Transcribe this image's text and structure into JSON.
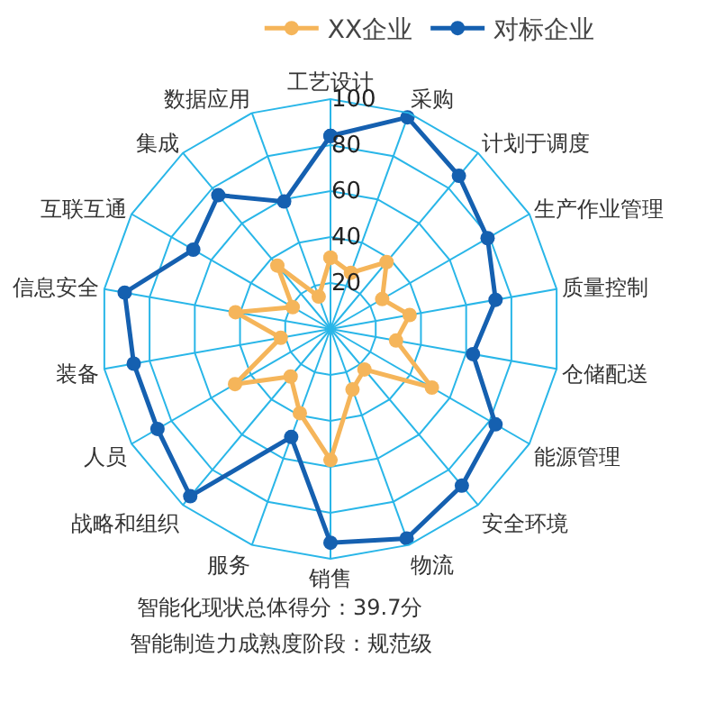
{
  "chart_data": {
    "type": "radar",
    "categories": [
      "工艺设计",
      "采购",
      "计划于调度",
      "生产作业管理",
      "质量控制",
      "仓储配送",
      "能源管理",
      "安全环境",
      "物流",
      "销售",
      "服务",
      "战略和组织",
      "人员",
      "装备",
      "信息安全",
      "互联互通",
      "集成",
      "数据应用"
    ],
    "series": [
      {
        "name": "XX企业",
        "color": "#f5b55a",
        "values": [
          31,
          26,
          38,
          26,
          35,
          29,
          51,
          23,
          28,
          57,
          39,
          27,
          48,
          22,
          42,
          19,
          36,
          15
        ]
      },
      {
        "name": "对标企业",
        "color": "#1560b0",
        "values": [
          84,
          98,
          87,
          79,
          73,
          63,
          83,
          89,
          97,
          93,
          50,
          95,
          87,
          87,
          91,
          69,
          76,
          59
        ]
      }
    ],
    "ylim": [
      0,
      100
    ],
    "yticks": [
      20,
      40,
      60,
      80,
      100
    ],
    "grid": true,
    "legend": "top",
    "marker": "circle",
    "annotations": [
      "智能化现状总体得分：39.7分",
      "智能制造力成熟度阶段：规范级"
    ]
  }
}
